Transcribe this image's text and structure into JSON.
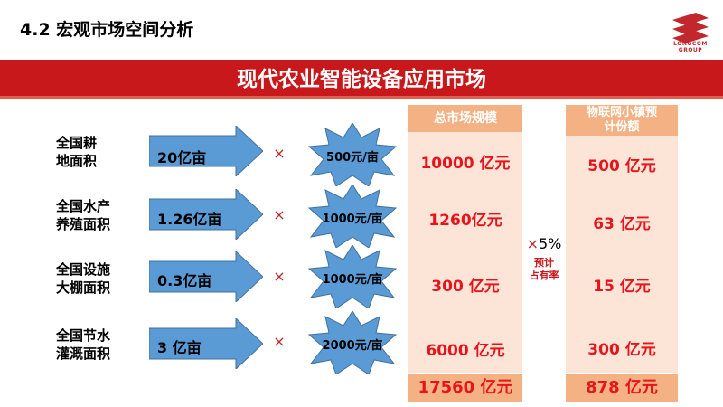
{
  "header": {
    "section_title": "4.2  宏观市场空间分析",
    "logo_text_line1": "LONGCOM",
    "logo_text_line2": "GROUP"
  },
  "banner": {
    "title": "现代农业智能设备应用市场"
  },
  "columns": {
    "market_header": "总市场规模",
    "share_header_line1": "物联网小镇预",
    "share_header_line2": "计份额"
  },
  "rows": [
    {
      "label_line1": "全国耕",
      "label_line2": "地面积",
      "area": "20亿亩",
      "times": "×",
      "unit_value": "500元/亩",
      "market_size": "10000 亿元",
      "share": "500 亿元"
    },
    {
      "label_line1": "全国水产",
      "label_line2": "养殖面积",
      "area": "1.26亿亩",
      "times": "×",
      "unit_value": "1000元/亩",
      "market_size": "1260亿元",
      "share": "63 亿元"
    },
    {
      "label_line1": "全国设施",
      "label_line2": "大棚面积",
      "area": "0.3亿亩",
      "times": "×",
      "unit_value": "1000元/亩",
      "market_size": "300 亿元",
      "share": "15 亿元"
    },
    {
      "label_line1": "全国节水",
      "label_line2": "灌溉面积",
      "area": "3 亿亩",
      "times": "×",
      "unit_value": "2000元/亩",
      "market_size": "6000 亿元",
      "share": "300  亿元"
    }
  ],
  "multiplier": {
    "sign": "×",
    "percent": "5%",
    "note_line1": "预计",
    "note_line2": "占有率"
  },
  "totals": {
    "market_total": "17560 亿元",
    "share_total": "878 亿元"
  },
  "colors": {
    "brand_red": "#c8181c",
    "value_red": "#e8141c",
    "arrow_blue": "#5b9bd5",
    "column_fill": "#fce4d6",
    "column_header": "#f4b183"
  }
}
